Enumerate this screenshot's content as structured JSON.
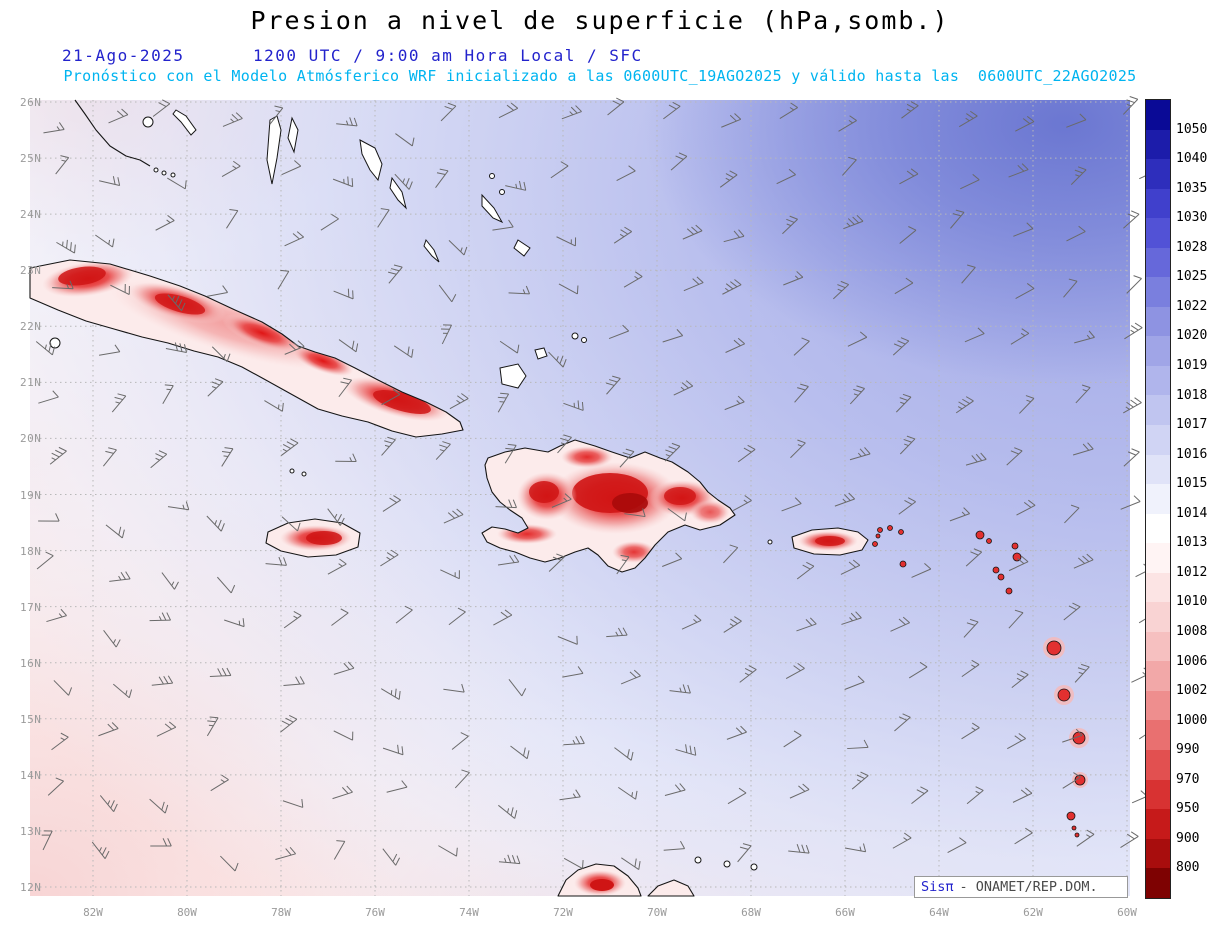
{
  "header": {
    "title": "Presion a nivel de superficie (hPa,somb.)",
    "date": "21-Ago-2025",
    "time_line": "1200 UTC / 9:00 am Hora Local / SFC",
    "forecast_line": "Pronóstico con el Modelo Atmósferico WRF inicializado a las 0600UTC_19AGO2025 y válido hasta las  0600UTC_22AGO2025"
  },
  "map": {
    "lat_ticks": [
      "26N",
      "25N",
      "24N",
      "23N",
      "22N",
      "21N",
      "20N",
      "19N",
      "18N",
      "17N",
      "16N",
      "15N",
      "14N",
      "13N",
      "12N"
    ],
    "lon_ticks": [
      "82W",
      "80W",
      "78W",
      "76W",
      "74W",
      "72W",
      "70W",
      "68W",
      "66W",
      "64W",
      "62W",
      "60W"
    ]
  },
  "colorbar": {
    "unit": "hPa",
    "labels": [
      1050,
      1040,
      1035,
      1030,
      1028,
      1025,
      1022,
      1020,
      1019,
      1018,
      1017,
      1016,
      1015,
      1014,
      1013,
      1012,
      1010,
      1008,
      1006,
      1002,
      1000,
      990,
      970,
      950,
      900,
      800
    ],
    "colors": [
      "#0a0a96",
      "#1c1caa",
      "#2e2ebc",
      "#4040cc",
      "#5252d6",
      "#6668da",
      "#7a7fde",
      "#8e93e2",
      "#a0a5e7",
      "#b0b5ec",
      "#c0c5f0",
      "#d0d4f4",
      "#e0e3f8",
      "#f0f2fc",
      "#ffffff",
      "#fff4f4",
      "#fce4e4",
      "#f9d3d3",
      "#f6c0c0",
      "#f2a8a8",
      "#ee8e8e",
      "#e97070",
      "#e25050",
      "#d83232",
      "#c61a1a",
      "#a80d0d",
      "#7e0202"
    ]
  },
  "credit": {
    "prefix": "Sisπ",
    "suffix": "- ONAMET/REP.DOM."
  },
  "palette": {
    "header_blue": "#2323cc",
    "forecast_cyan": "#00b4f0",
    "credit_blue": "#2323cc",
    "credit_gray": "#4a4a4a",
    "grid_gray": "#b8b8b8",
    "barb_gray": "#6a6a6a",
    "coast_black": "#151515",
    "label_gray": "#9a9a9a"
  }
}
